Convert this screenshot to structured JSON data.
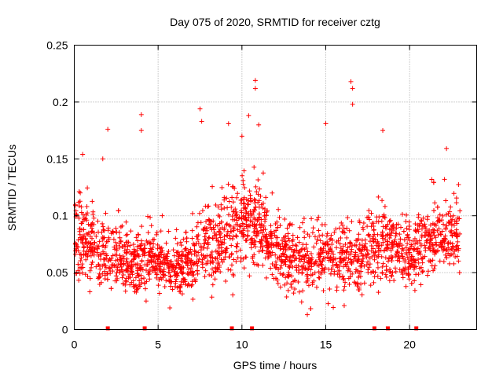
{
  "chart_data": {
    "type": "scatter",
    "title": "Day 075 of 2020, SRMTID for receiver cztg",
    "xlabel": "GPS time / hours",
    "ylabel": "SRMTID / TECUs",
    "xlim": [
      0,
      24
    ],
    "ylim": [
      0,
      0.25
    ],
    "xticks": [
      0,
      5,
      10,
      15,
      20
    ],
    "xtick_labels": [
      "0",
      "5",
      "10",
      "15",
      "20"
    ],
    "yticks": [
      0,
      0.05,
      0.1,
      0.15,
      0.2,
      0.25
    ],
    "ytick_labels": [
      "0",
      "0.05",
      "0.1",
      "0.15",
      "0.2",
      "0.25"
    ],
    "grid": true,
    "marker": "+",
    "series_color": "#ff0000",
    "x_range_hours": [
      0,
      23
    ],
    "envelope": {
      "description": "dense point cloud; typical values per hour",
      "hours": [
        0,
        1,
        2,
        3,
        4,
        5,
        6,
        7,
        8,
        9,
        10,
        11,
        12,
        13,
        14,
        15,
        16,
        17,
        18,
        19,
        20,
        21,
        22,
        23
      ],
      "mean": [
        0.08,
        0.075,
        0.065,
        0.06,
        0.06,
        0.06,
        0.055,
        0.06,
        0.075,
        0.08,
        0.095,
        0.09,
        0.07,
        0.06,
        0.06,
        0.07,
        0.06,
        0.065,
        0.075,
        0.07,
        0.065,
        0.075,
        0.08,
        0.085
      ],
      "spread": [
        0.03,
        0.03,
        0.025,
        0.025,
        0.025,
        0.02,
        0.02,
        0.025,
        0.03,
        0.03,
        0.035,
        0.03,
        0.025,
        0.025,
        0.025,
        0.03,
        0.03,
        0.03,
        0.03,
        0.025,
        0.025,
        0.025,
        0.025,
        0.025
      ]
    },
    "peak_points": [
      {
        "x": 2.0,
        "y": 0.176
      },
      {
        "x": 4.0,
        "y": 0.189
      },
      {
        "x": 4.0,
        "y": 0.175
      },
      {
        "x": 7.5,
        "y": 0.194
      },
      {
        "x": 7.6,
        "y": 0.183
      },
      {
        "x": 9.2,
        "y": 0.181
      },
      {
        "x": 10.0,
        "y": 0.17
      },
      {
        "x": 10.4,
        "y": 0.188
      },
      {
        "x": 10.8,
        "y": 0.219
      },
      {
        "x": 10.8,
        "y": 0.212
      },
      {
        "x": 11.0,
        "y": 0.18
      },
      {
        "x": 15.0,
        "y": 0.181
      },
      {
        "x": 16.5,
        "y": 0.218
      },
      {
        "x": 16.6,
        "y": 0.212
      },
      {
        "x": 16.6,
        "y": 0.198
      },
      {
        "x": 18.4,
        "y": 0.175
      },
      {
        "x": 22.2,
        "y": 0.159
      },
      {
        "x": 0.5,
        "y": 0.154
      },
      {
        "x": 1.7,
        "y": 0.15
      },
      {
        "x": 5.7,
        "y": 0.019
      },
      {
        "x": 13.9,
        "y": 0.013
      },
      {
        "x": 16.1,
        "y": 0.021
      }
    ],
    "baseline_markers_x": [
      2.0,
      4.2,
      9.4,
      10.6,
      17.9,
      18.7,
      20.4
    ]
  }
}
